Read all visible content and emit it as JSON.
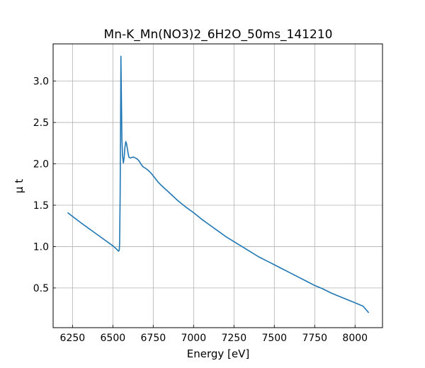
{
  "chart_data": {
    "type": "line",
    "title": "Mn-K_Mn(NO3)2_6H2O_50ms_141210",
    "xlabel": "Energy [eV]",
    "ylabel": "μ t",
    "xlim": [
      6130,
      8170
    ],
    "ylim": [
      0.02,
      3.45
    ],
    "grid": true,
    "x_ticks": [
      6250,
      6500,
      6750,
      7000,
      7250,
      7500,
      7750,
      8000
    ],
    "y_ticks": [
      0.5,
      1.0,
      1.5,
      2.0,
      2.5,
      3.0
    ],
    "x_tick_labels": [
      "6250",
      "6500",
      "6750",
      "7000",
      "7250",
      "7500",
      "7750",
      "8000"
    ],
    "y_tick_labels": [
      "0.5",
      "1.0",
      "1.5",
      "2.0",
      "2.5",
      "3.0"
    ],
    "series": [
      {
        "color": "#1f77b4",
        "x": [
          6220,
          6260,
          6300,
          6350,
          6400,
          6450,
          6500,
          6520,
          6530,
          6535,
          6538,
          6540,
          6542,
          6545,
          6548,
          6550,
          6553,
          6556,
          6560,
          6565,
          6570,
          6575,
          6580,
          6585,
          6590,
          6595,
          6600,
          6610,
          6620,
          6630,
          6640,
          6650,
          6660,
          6670,
          6680,
          6690,
          6700,
          6720,
          6740,
          6760,
          6780,
          6800,
          6850,
          6900,
          6950,
          7000,
          7050,
          7100,
          7150,
          7200,
          7250,
          7300,
          7350,
          7400,
          7450,
          7500,
          7550,
          7600,
          7650,
          7700,
          7750,
          7800,
          7850,
          7900,
          7950,
          8000,
          8050,
          8085
        ],
        "y": [
          1.41,
          1.35,
          1.29,
          1.22,
          1.15,
          1.08,
          1.01,
          0.975,
          0.955,
          0.945,
          0.95,
          0.97,
          1.05,
          1.6,
          2.6,
          3.3,
          2.8,
          2.3,
          2.1,
          2.01,
          2.08,
          2.2,
          2.27,
          2.24,
          2.18,
          2.12,
          2.08,
          2.07,
          2.08,
          2.08,
          2.07,
          2.06,
          2.04,
          2.01,
          1.98,
          1.96,
          1.95,
          1.92,
          1.88,
          1.83,
          1.78,
          1.74,
          1.65,
          1.56,
          1.48,
          1.41,
          1.33,
          1.26,
          1.19,
          1.12,
          1.06,
          1.0,
          0.94,
          0.88,
          0.83,
          0.78,
          0.73,
          0.68,
          0.63,
          0.58,
          0.53,
          0.49,
          0.44,
          0.4,
          0.36,
          0.32,
          0.28,
          0.2
        ]
      }
    ]
  }
}
